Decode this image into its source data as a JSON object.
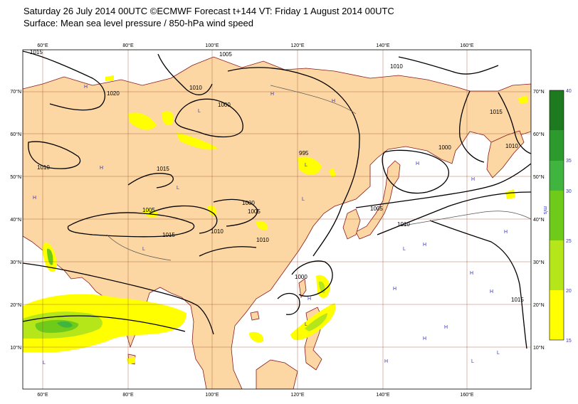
{
  "header": {
    "title": "Saturday 26 July 2014 00UTC ©ECMWF Forecast t+144 VT: Friday 1 August 2014 00UTC",
    "subtitle": "Surface: Mean sea level pressure / 850-hPa wind speed"
  },
  "axes": {
    "lon_ticks": [
      "60°E",
      "80°E",
      "100°E",
      "120°E",
      "140°E",
      "160°E"
    ],
    "lat_ticks_left": [
      "70°N",
      "60°N",
      "50°N",
      "40°N",
      "30°N",
      "20°N",
      "10°N"
    ],
    "lat_ticks_right": [
      "70°N",
      "60°N",
      "50°N",
      "40°N",
      "30°N",
      "20°N",
      "10°N"
    ]
  },
  "isobar_labels": [
    "1015",
    "1005",
    "1010",
    "1020",
    "1010",
    "1000",
    "1015",
    "1010",
    "1010",
    "995",
    "1000",
    "1005",
    "1015",
    "1005",
    "1010",
    "1015",
    "1005",
    "1010",
    "1000",
    "1010",
    "1000",
    "1015"
  ],
  "pressure_centres": [
    "H",
    "H",
    "H",
    "L",
    "H",
    "L",
    "H",
    "L",
    "H",
    "H",
    "L",
    "H",
    "L",
    "L",
    "H",
    "L",
    "H",
    "H",
    "H",
    "H",
    "L",
    "H",
    "H",
    "L",
    "H",
    "L"
  ],
  "colorbar": {
    "unit": "m/s",
    "levels": [
      "40",
      "35",
      "30",
      "25",
      "20",
      "15"
    ],
    "colors": [
      "#1e7a1e",
      "#2c9a2c",
      "#3fb43f",
      "#6fcb1a",
      "#b4e61a",
      "#ffff00"
    ]
  },
  "colors": {
    "land": "#fcd7a4",
    "sea": "#ffffff",
    "isobar": "#000000",
    "coast": "#8a1a1a",
    "grid": "#a0522d",
    "hl_marker": "#3535c8"
  }
}
